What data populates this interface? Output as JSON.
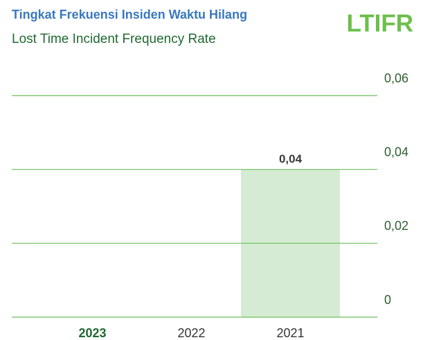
{
  "chart_data": {
    "type": "bar",
    "title": "Tingkat Frekuensi Insiden Waktu Hilang",
    "subtitle": "Lost Time Incident Frequency Rate",
    "metric": "LTIFR",
    "categories": [
      "2023",
      "2022",
      "2021"
    ],
    "values": [
      0,
      0,
      0.04
    ],
    "value_labels": [
      null,
      null,
      "0,04"
    ],
    "color": "#d5ebd3",
    "ylim": [
      0,
      0.06
    ],
    "yticks": [
      0,
      {
        "value": 0.02,
        "label": "0,02"
      },
      {
        "value": 0.04,
        "label": "0,04"
      },
      {
        "value": 0.06,
        "label": "0,06"
      }
    ],
    "grid": true,
    "grid_color": "#6cbf5a",
    "highlight": 0
  }
}
